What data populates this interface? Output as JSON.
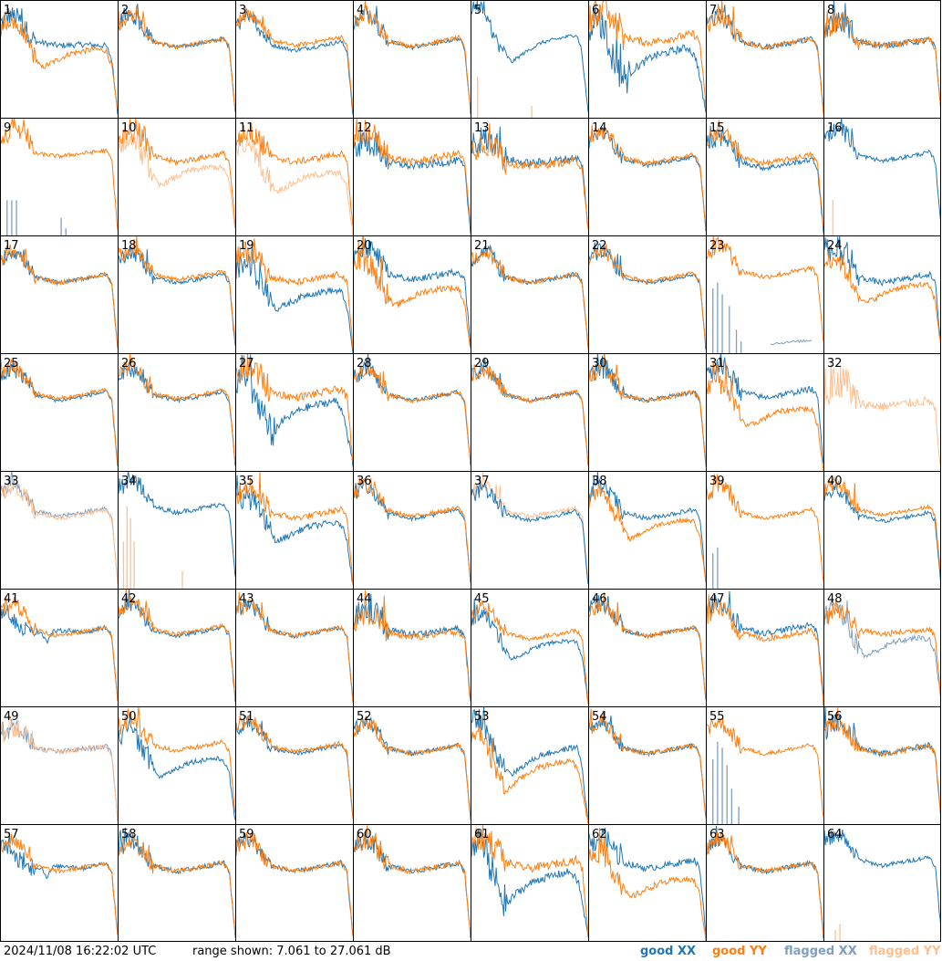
{
  "colors": {
    "good_xx": "#1f77b4",
    "good_yy": "#ff7f0e",
    "flagged_xx": "#7f9fbf",
    "flagged_yy": "#ffbf8f"
  },
  "footer": {
    "timestamp": "2024/11/08 16:22:02 UTC",
    "range_text": "range shown: 7.061 to 27.061 dB",
    "legend": {
      "good_xx": "good XX",
      "good_yy": "good YY",
      "flagged_xx": "flagged XX",
      "flagged_yy": "flagged YY"
    }
  },
  "chart_data": {
    "type": "line",
    "grid": {
      "rows": 8,
      "cols": 8
    },
    "y_range_db": [
      7.061,
      27.061
    ],
    "x_label": "",
    "y_label": "",
    "panel_ids": [
      "1",
      "2",
      "3",
      "4",
      "5",
      "6",
      "7",
      "8",
      "9",
      "10",
      "11",
      "12",
      "13",
      "14",
      "15",
      "16",
      "17",
      "18",
      "19",
      "20",
      "21",
      "22",
      "23",
      "24",
      "25",
      "26",
      "27",
      "28",
      "29",
      "30",
      "31",
      "32",
      "33",
      "34",
      "35",
      "36",
      "37",
      "38",
      "39",
      "40",
      "41",
      "42",
      "43",
      "44",
      "45",
      "46",
      "47",
      "48",
      "49",
      "50",
      "51",
      "52",
      "53",
      "54",
      "55",
      "56",
      "57",
      "58",
      "59",
      "60",
      "61",
      "62",
      "63",
      "64"
    ],
    "profiles": {
      "N": [
        [
          0,
          23
        ],
        [
          0.05,
          23.5
        ],
        [
          0.1,
          24.5
        ],
        [
          0.18,
          23.5
        ],
        [
          0.3,
          20
        ],
        [
          0.5,
          19
        ],
        [
          0.7,
          19.7
        ],
        [
          0.9,
          20.5
        ],
        [
          0.95,
          19
        ],
        [
          1,
          8
        ]
      ],
      "H": [
        [
          0,
          23
        ],
        [
          0.06,
          24
        ],
        [
          0.12,
          25
        ],
        [
          0.2,
          24
        ],
        [
          0.32,
          21
        ],
        [
          0.5,
          20.5
        ],
        [
          0.7,
          21
        ],
        [
          0.9,
          21.7
        ],
        [
          0.95,
          20
        ],
        [
          1,
          8
        ]
      ],
      "L": [
        [
          0,
          22
        ],
        [
          0.08,
          23.5
        ],
        [
          0.15,
          22.5
        ],
        [
          0.25,
          19
        ],
        [
          0.35,
          15.5
        ],
        [
          0.45,
          16.5
        ],
        [
          0.6,
          18
        ],
        [
          0.8,
          18.7
        ],
        [
          0.9,
          18.5
        ],
        [
          0.95,
          16
        ],
        [
          1,
          8
        ]
      ],
      "D": [
        [
          0,
          22
        ],
        [
          0.06,
          24
        ],
        [
          0.1,
          23.5
        ],
        [
          0.2,
          18
        ],
        [
          0.3,
          13.5
        ],
        [
          0.4,
          15.5
        ],
        [
          0.55,
          17.5
        ],
        [
          0.7,
          18.3
        ],
        [
          0.85,
          19
        ],
        [
          0.92,
          17
        ],
        [
          1,
          8
        ]
      ],
      "V": [
        [
          0,
          25.5
        ],
        [
          0.08,
          26
        ],
        [
          0.15,
          23
        ],
        [
          0.25,
          19
        ],
        [
          0.35,
          16.5
        ],
        [
          0.45,
          18
        ],
        [
          0.6,
          19.8
        ],
        [
          0.75,
          20.5
        ],
        [
          0.9,
          21.2
        ],
        [
          0.94,
          19
        ],
        [
          1,
          8
        ]
      ],
      "F": [
        [
          0,
          23
        ],
        [
          0.08,
          24.5
        ],
        [
          0.15,
          24
        ],
        [
          0.22,
          22
        ],
        [
          0.3,
          20
        ],
        [
          0.5,
          19.3
        ],
        [
          0.7,
          19.5
        ],
        [
          0.9,
          19.3
        ],
        [
          0.95,
          17
        ],
        [
          1,
          8
        ]
      ],
      "S": [
        [
          0,
          22
        ],
        [
          0.1,
          25
        ],
        [
          0.2,
          24.5
        ],
        [
          0.3,
          21
        ],
        [
          0.5,
          20.5
        ],
        [
          0.7,
          21
        ],
        [
          0.9,
          21.5
        ],
        [
          0.95,
          20
        ],
        [
          1,
          8
        ]
      ],
      "C": [
        [
          0,
          22
        ],
        [
          0.1,
          23.5
        ],
        [
          0.2,
          23
        ],
        [
          0.3,
          20
        ],
        [
          0.5,
          19.3
        ],
        [
          0.8,
          20
        ],
        [
          0.9,
          20.3
        ],
        [
          0.95,
          19
        ],
        [
          1,
          8
        ]
      ],
      "P": [
        [
          0,
          23
        ],
        [
          0.05,
          23.5
        ],
        [
          0.15,
          21
        ],
        [
          0.25,
          19.5
        ],
        [
          0.35,
          19.7
        ],
        [
          0.4,
          18
        ],
        [
          0.45,
          19.8
        ],
        [
          0.6,
          20
        ],
        [
          0.7,
          19.5
        ],
        [
          0.9,
          20.5
        ],
        [
          0.95,
          19
        ],
        [
          1,
          8
        ]
      ]
    },
    "series": [
      {
        "xx": {
          "p": "F",
          "o": 0
        },
        "yy": {
          "p": "L",
          "o": 0
        },
        "n": 2.2
      },
      {
        "xx": {
          "p": "N",
          "o": 0
        },
        "yy": {
          "p": "N",
          "o": 0
        },
        "n": 1.6
      },
      {
        "xx": {
          "p": "N",
          "o": -0.5
        },
        "yy": {
          "p": "N",
          "o": 0.3
        },
        "n": 1.6
      },
      {
        "xx": {
          "p": "N",
          "o": 0
        },
        "yy": {
          "p": "N",
          "o": 0.2
        },
        "n": 1.6
      },
      {
        "xx": {
          "p": "V",
          "o": 0
        },
        "yy": null,
        "fyy": {
          "kind": "spikes",
          "spikes": [
            [
              0.06,
              0.35
            ],
            [
              0.52,
              0.1
            ]
          ]
        },
        "n": 1.4
      },
      {
        "xx": {
          "p": "D",
          "o": 0,
          "big": true
        },
        "yy": {
          "p": "N",
          "o": 0.8
        },
        "n": 3
      },
      {
        "xx": {
          "p": "N",
          "o": 0
        },
        "yy": {
          "p": "N",
          "o": 0
        },
        "n": 2
      },
      {
        "xx": {
          "p": "C",
          "o": 0
        },
        "yy": {
          "p": "C",
          "o": 0
        },
        "n": 2.5
      },
      {
        "xx": null,
        "yy": {
          "p": "S",
          "o": 0
        },
        "fxx": {
          "kind": "spikes",
          "spikes": [
            [
              0.06,
              0.3
            ],
            [
              0.1,
              0.3
            ],
            [
              0.14,
              0.3
            ],
            [
              0.52,
              0.15
            ],
            [
              0.56,
              0.06
            ]
          ]
        },
        "n": 1.6
      },
      {
        "xx": null,
        "yy": {
          "p": "N",
          "o": 0.5
        },
        "fyy": {
          "p": "L",
          "o": 0
        },
        "n": 2.2
      },
      {
        "xx": null,
        "yy": {
          "p": "N",
          "o": 0.5
        },
        "fyy": {
          "p": "L",
          "o": -1
        },
        "n": 2.4
      },
      {
        "xx": {
          "p": "C",
          "o": -0.5
        },
        "yy": {
          "p": "N",
          "o": 0.5
        },
        "n": 2.8
      },
      {
        "xx": {
          "p": "C",
          "o": 0
        },
        "yy": {
          "p": "C",
          "o": -0.5
        },
        "n": 3
      },
      {
        "xx": {
          "p": "N",
          "o": 0
        },
        "yy": {
          "p": "N",
          "o": 0.3
        },
        "n": 1.6
      },
      {
        "xx": {
          "p": "N",
          "o": -0.5
        },
        "yy": {
          "p": "N",
          "o": 0.3
        },
        "n": 2
      },
      {
        "xx": {
          "p": "N",
          "o": 0.7
        },
        "yy": null,
        "fyy": {
          "kind": "spikes",
          "spikes": [
            [
              0.08,
              0.3
            ]
          ]
        },
        "n": 1.6
      },
      {
        "xx": {
          "p": "N",
          "o": 0
        },
        "yy": {
          "p": "N",
          "o": 0
        },
        "n": 1.6
      },
      {
        "xx": {
          "p": "N",
          "o": 0
        },
        "yy": {
          "p": "N",
          "o": 0.5
        },
        "n": 1.6
      },
      {
        "xx": {
          "p": "L",
          "o": -1
        },
        "yy": {
          "p": "N",
          "o": 0
        },
        "n": 2.5
      },
      {
        "xx": {
          "p": "N",
          "o": 0.5
        },
        "yy": {
          "p": "L",
          "o": -0.5
        },
        "n": 2.5
      },
      {
        "xx": {
          "p": "N",
          "o": 0
        },
        "yy": {
          "p": "N",
          "o": 0
        },
        "n": 1.8
      },
      {
        "xx": {
          "p": "N",
          "o": 0
        },
        "yy": {
          "p": "N",
          "o": 0.2
        },
        "n": 1.6
      },
      {
        "xx": null,
        "yy": {
          "p": "N",
          "o": 1
        },
        "fxx": {
          "kind": "spikes_tail",
          "spikes": [
            [
              0.06,
              0.55
            ],
            [
              0.1,
              0.6
            ],
            [
              0.14,
              0.5
            ],
            [
              0.2,
              0.4
            ],
            [
              0.26,
              0.2
            ],
            [
              0.3,
              0.1
            ]
          ],
          "tail": [
            0.55,
            0.9,
            0.08
          ]
        },
        "n": 2
      },
      {
        "xx": {
          "p": "N",
          "o": 0
        },
        "yy": {
          "p": "L",
          "o": 0
        },
        "n": 2.2
      },
      {
        "xx": {
          "p": "N",
          "o": 0
        },
        "yy": {
          "p": "N",
          "o": 0.3
        },
        "n": 1.6
      },
      {
        "xx": {
          "p": "N",
          "o": 0
        },
        "yy": {
          "p": "N",
          "o": 0.3
        },
        "n": 1.6
      },
      {
        "xx": {
          "p": "D",
          "o": 0,
          "big": true
        },
        "yy": {
          "p": "N",
          "o": 0.5
        },
        "n": 3
      },
      {
        "xx": {
          "p": "N",
          "o": 0
        },
        "yy": {
          "p": "N",
          "o": 0
        },
        "n": 1.6
      },
      {
        "xx": {
          "p": "N",
          "o": 0
        },
        "yy": {
          "p": "N",
          "o": 0
        },
        "n": 1.6
      },
      {
        "xx": {
          "p": "N",
          "o": 0
        },
        "yy": {
          "p": "N",
          "o": 0
        },
        "n": 1.8
      },
      {
        "xx": {
          "p": "N",
          "o": 0.5
        },
        "yy": {
          "p": "L",
          "o": -1
        },
        "n": 2.2
      },
      {
        "xx": null,
        "yy": null,
        "fyy": {
          "p": "S",
          "o": -2.5
        },
        "n": 3.5
      },
      {
        "xx": null,
        "yy": null,
        "fxx": {
          "p": "N",
          "o": 0.3
        },
        "fyy": {
          "p": "N",
          "o": 0
        },
        "n": 1.6
      },
      {
        "xx": {
          "p": "N",
          "o": 1
        },
        "yy": null,
        "fyy": {
          "kind": "spikes",
          "spikes": [
            [
              0.05,
              0.4
            ],
            [
              0.08,
              0.7
            ],
            [
              0.11,
              0.6
            ],
            [
              0.14,
              0.4
            ],
            [
              0.55,
              0.15
            ]
          ]
        },
        "n": 1.8
      },
      {
        "xx": {
          "p": "L",
          "o": -0.5
        },
        "yy": {
          "p": "N",
          "o": 0
        },
        "n": 2.4
      },
      {
        "xx": {
          "p": "N",
          "o": 0
        },
        "yy": {
          "p": "N",
          "o": 0.3
        },
        "n": 1.6
      },
      {
        "xx": {
          "p": "N",
          "o": -0.3
        },
        "yy": null,
        "fyy": {
          "p": "N",
          "o": 0.3
        },
        "n": 1.6
      },
      {
        "xx": {
          "p": "N",
          "o": 0
        },
        "yy": {
          "p": "L",
          "o": 0
        },
        "n": 1.8
      },
      {
        "xx": null,
        "yy": {
          "p": "N",
          "o": 0
        },
        "fxx": {
          "kind": "spikes",
          "spikes": [
            [
              0.06,
              0.3
            ],
            [
              0.1,
              0.35
            ]
          ]
        },
        "n": 1.6
      },
      {
        "xx": {
          "p": "N",
          "o": -0.5
        },
        "yy": {
          "p": "N",
          "o": 0.5
        },
        "n": 1.6
      },
      {
        "xx": {
          "p": "P",
          "o": 0
        },
        "yy": {
          "p": "N",
          "o": 0
        },
        "n": 1.6
      },
      {
        "xx": {
          "p": "N",
          "o": 0
        },
        "yy": {
          "p": "N",
          "o": 0.3
        },
        "n": 1.6
      },
      {
        "xx": {
          "p": "N",
          "o": 0
        },
        "yy": {
          "p": "N",
          "o": 0
        },
        "n": 1.6
      },
      {
        "xx": {
          "p": "C",
          "o": 0
        },
        "yy": {
          "p": "C",
          "o": -0.5
        },
        "n": 2.5
      },
      {
        "xx": {
          "p": "L",
          "o": -0.5
        },
        "yy": {
          "p": "N",
          "o": -0.5
        },
        "n": 1.6
      },
      {
        "xx": {
          "p": "N",
          "o": 0
        },
        "yy": {
          "p": "N",
          "o": 0
        },
        "n": 1.6
      },
      {
        "xx": {
          "p": "N",
          "o": 0.5
        },
        "yy": {
          "p": "N",
          "o": -0.5
        },
        "n": 2.2
      },
      {
        "xx": null,
        "yy": {
          "p": "C",
          "o": 0
        },
        "fxx": {
          "p": "L",
          "o": 0
        },
        "n": 2.2
      },
      {
        "xx": null,
        "yy": null,
        "fxx": {
          "p": "C",
          "o": 0
        },
        "fyy": {
          "p": "C",
          "o": 0
        },
        "n": 2
      },
      {
        "xx": {
          "p": "L",
          "o": -0.5
        },
        "yy": {
          "p": "N",
          "o": 0.5
        },
        "n": 2
      },
      {
        "xx": {
          "p": "N",
          "o": 0
        },
        "yy": {
          "p": "N",
          "o": 0.3
        },
        "n": 1.6
      },
      {
        "xx": {
          "p": "N",
          "o": 0
        },
        "yy": {
          "p": "N",
          "o": 0
        },
        "n": 1.6
      },
      {
        "xx": {
          "p": "V",
          "o": -1
        },
        "yy": {
          "p": "D",
          "o": -1
        },
        "n": 2.2
      },
      {
        "xx": {
          "p": "N",
          "o": 0
        },
        "yy": {
          "p": "N",
          "o": 0
        },
        "n": 1.6
      },
      {
        "xx": null,
        "yy": {
          "p": "N",
          "o": 0
        },
        "fxx": {
          "kind": "spikes",
          "spikes": [
            [
              0.06,
              0.55
            ],
            [
              0.1,
              0.7
            ],
            [
              0.14,
              0.65
            ],
            [
              0.18,
              0.5
            ],
            [
              0.22,
              0.3
            ],
            [
              0.28,
              0.15
            ]
          ]
        },
        "n": 1.6
      },
      {
        "xx": {
          "p": "N",
          "o": 0
        },
        "yy": {
          "p": "N",
          "o": 0
        },
        "n": 2.2
      },
      {
        "xx": {
          "p": "P",
          "o": 0
        },
        "yy": {
          "p": "N",
          "o": 0
        },
        "n": 1.6
      },
      {
        "xx": {
          "p": "N",
          "o": 0
        },
        "yy": {
          "p": "N",
          "o": 0
        },
        "n": 2
      },
      {
        "xx": {
          "p": "N",
          "o": 0
        },
        "yy": {
          "p": "N",
          "o": 0
        },
        "n": 1.8
      },
      {
        "xx": {
          "p": "N",
          "o": 0
        },
        "yy": {
          "p": "N",
          "o": 0
        },
        "n": 2
      },
      {
        "xx": {
          "p": "D",
          "o": 0,
          "big": true
        },
        "yy": {
          "p": "N",
          "o": 0.5
        },
        "n": 3
      },
      {
        "xx": {
          "p": "N",
          "o": 0.5
        },
        "yy": {
          "p": "L",
          "o": -1
        },
        "n": 2.4
      },
      {
        "xx": {
          "p": "N",
          "o": 0
        },
        "yy": {
          "p": "N",
          "o": 0
        },
        "n": 1.8
      },
      {
        "xx": {
          "p": "N",
          "o": 1
        },
        "yy": null,
        "fyy": {
          "kind": "spikes",
          "spikes": [
            [
              0.1,
              0.1
            ],
            [
              0.14,
              0.15
            ]
          ]
        },
        "n": 1.6
      }
    ]
  }
}
